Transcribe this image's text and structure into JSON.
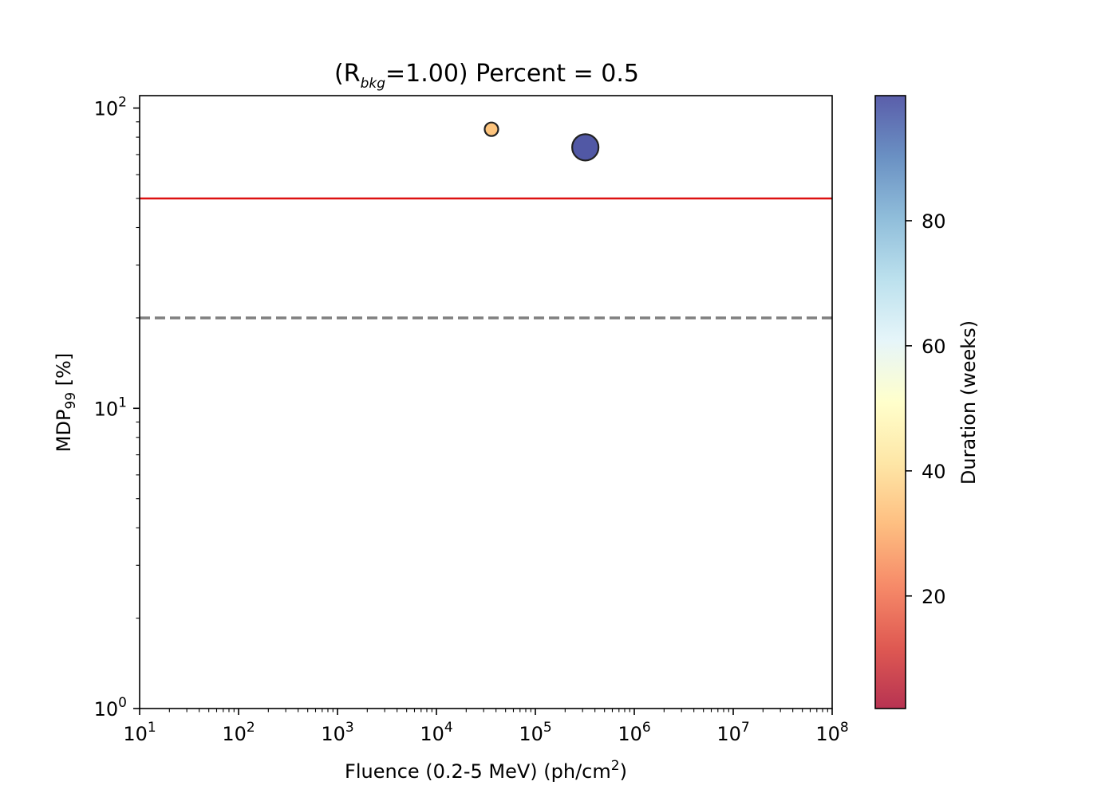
{
  "chart_data": {
    "type": "scatter",
    "title": {
      "prefix": "(R",
      "subscript": "bkg",
      "suffix": "=1.00) Percent = 0.5"
    },
    "xlabel": {
      "text": "Fluence (0.2-5 MeV) (ph/cm",
      "superscript": "2",
      "tail": ")"
    },
    "ylabel": {
      "main": "MDP",
      "subscript": "99",
      "tail": " [%]"
    },
    "x_scale": "log",
    "y_scale": "log",
    "xlim": [
      10,
      100000000
    ],
    "ylim": [
      1,
      110
    ],
    "x_ticks": [
      {
        "base": "10",
        "exp": "1",
        "value": 10
      },
      {
        "base": "10",
        "exp": "2",
        "value": 100
      },
      {
        "base": "10",
        "exp": "3",
        "value": 1000
      },
      {
        "base": "10",
        "exp": "4",
        "value": 10000
      },
      {
        "base": "10",
        "exp": "5",
        "value": 100000
      },
      {
        "base": "10",
        "exp": "6",
        "value": 1000000
      },
      {
        "base": "10",
        "exp": "7",
        "value": 10000000
      },
      {
        "base": "10",
        "exp": "8",
        "value": 100000000
      }
    ],
    "y_ticks": [
      {
        "base": "10",
        "exp": "0",
        "value": 1
      },
      {
        "base": "10",
        "exp": "1",
        "value": 10
      },
      {
        "base": "10",
        "exp": "2",
        "value": 100
      }
    ],
    "points": [
      {
        "x": 36000,
        "y": 85,
        "duration": 35,
        "marker_size": "small",
        "color": "#fdc47d"
      },
      {
        "x": 320000,
        "y": 74,
        "duration": 100,
        "marker_size": "large",
        "color": "#5158a5"
      }
    ],
    "reference_lines": [
      {
        "y": 50,
        "style": "solid",
        "color": "#dd1111"
      },
      {
        "y": 20,
        "style": "dashed",
        "color": "#808080"
      }
    ],
    "colorbar": {
      "label": "Duration (weeks)",
      "colormap": "RdYlBu",
      "range": [
        2,
        100
      ],
      "ticks": [
        20,
        40,
        60,
        80
      ],
      "colors": [
        "#a50026",
        "#d73027",
        "#f46d43",
        "#fdae61",
        "#fee090",
        "#ffffbf",
        "#e0f3f8",
        "#abd9e9",
        "#74add1",
        "#4575b4",
        "#313695"
      ]
    },
    "grid": false,
    "legend": "none"
  }
}
